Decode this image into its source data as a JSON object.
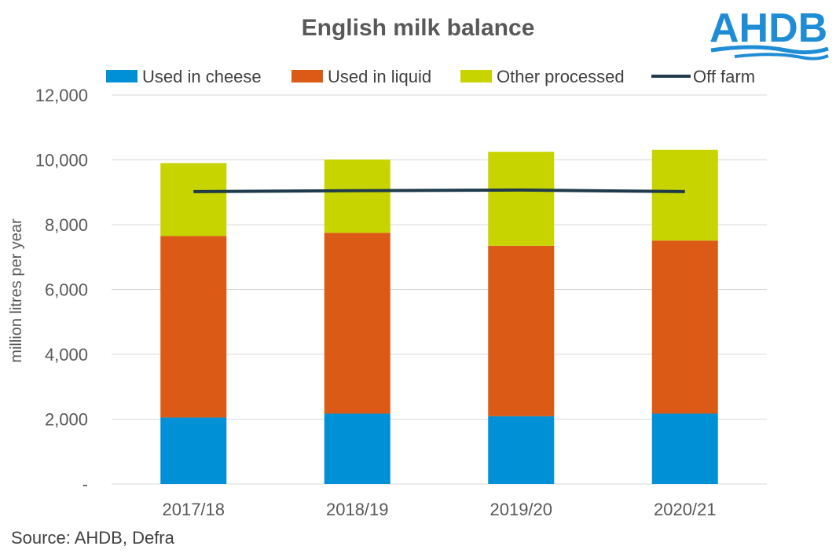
{
  "logo": {
    "text": "AHDB"
  },
  "source": "Source: AHDB, Defra",
  "colors": {
    "cheese": "#0090d6",
    "liquid": "#db5a16",
    "other": "#c8d400",
    "line": "#1f3a4a",
    "grid": "#d9d9d9",
    "logo": "#1f8dd6"
  },
  "chart_data": {
    "type": "bar",
    "stacked": true,
    "title": "English milk balance",
    "ylabel": "million litres per year",
    "xlabel": "",
    "categories": [
      "2017/18",
      "2018/19",
      "2019/20",
      "2020/21"
    ],
    "ylim": [
      0,
      12000
    ],
    "yticks": [
      0,
      2000,
      4000,
      6000,
      8000,
      10000,
      12000
    ],
    "ytick_labels": [
      "-",
      "2,000",
      "4,000",
      "6,000",
      "8,000",
      "10,000",
      "12,000"
    ],
    "grid": true,
    "legend_position": "top",
    "series": [
      {
        "name": "Used in cheese",
        "kind": "bar",
        "values": [
          2050,
          2170,
          2090,
          2170
        ]
      },
      {
        "name": "Used in liquid",
        "kind": "bar",
        "values": [
          5600,
          5580,
          5260,
          5340
        ]
      },
      {
        "name": "Other processed",
        "kind": "bar",
        "values": [
          2250,
          2260,
          2900,
          2800
        ]
      },
      {
        "name": "Off farm",
        "kind": "line",
        "values": [
          9020,
          9050,
          9070,
          9020
        ]
      }
    ]
  }
}
